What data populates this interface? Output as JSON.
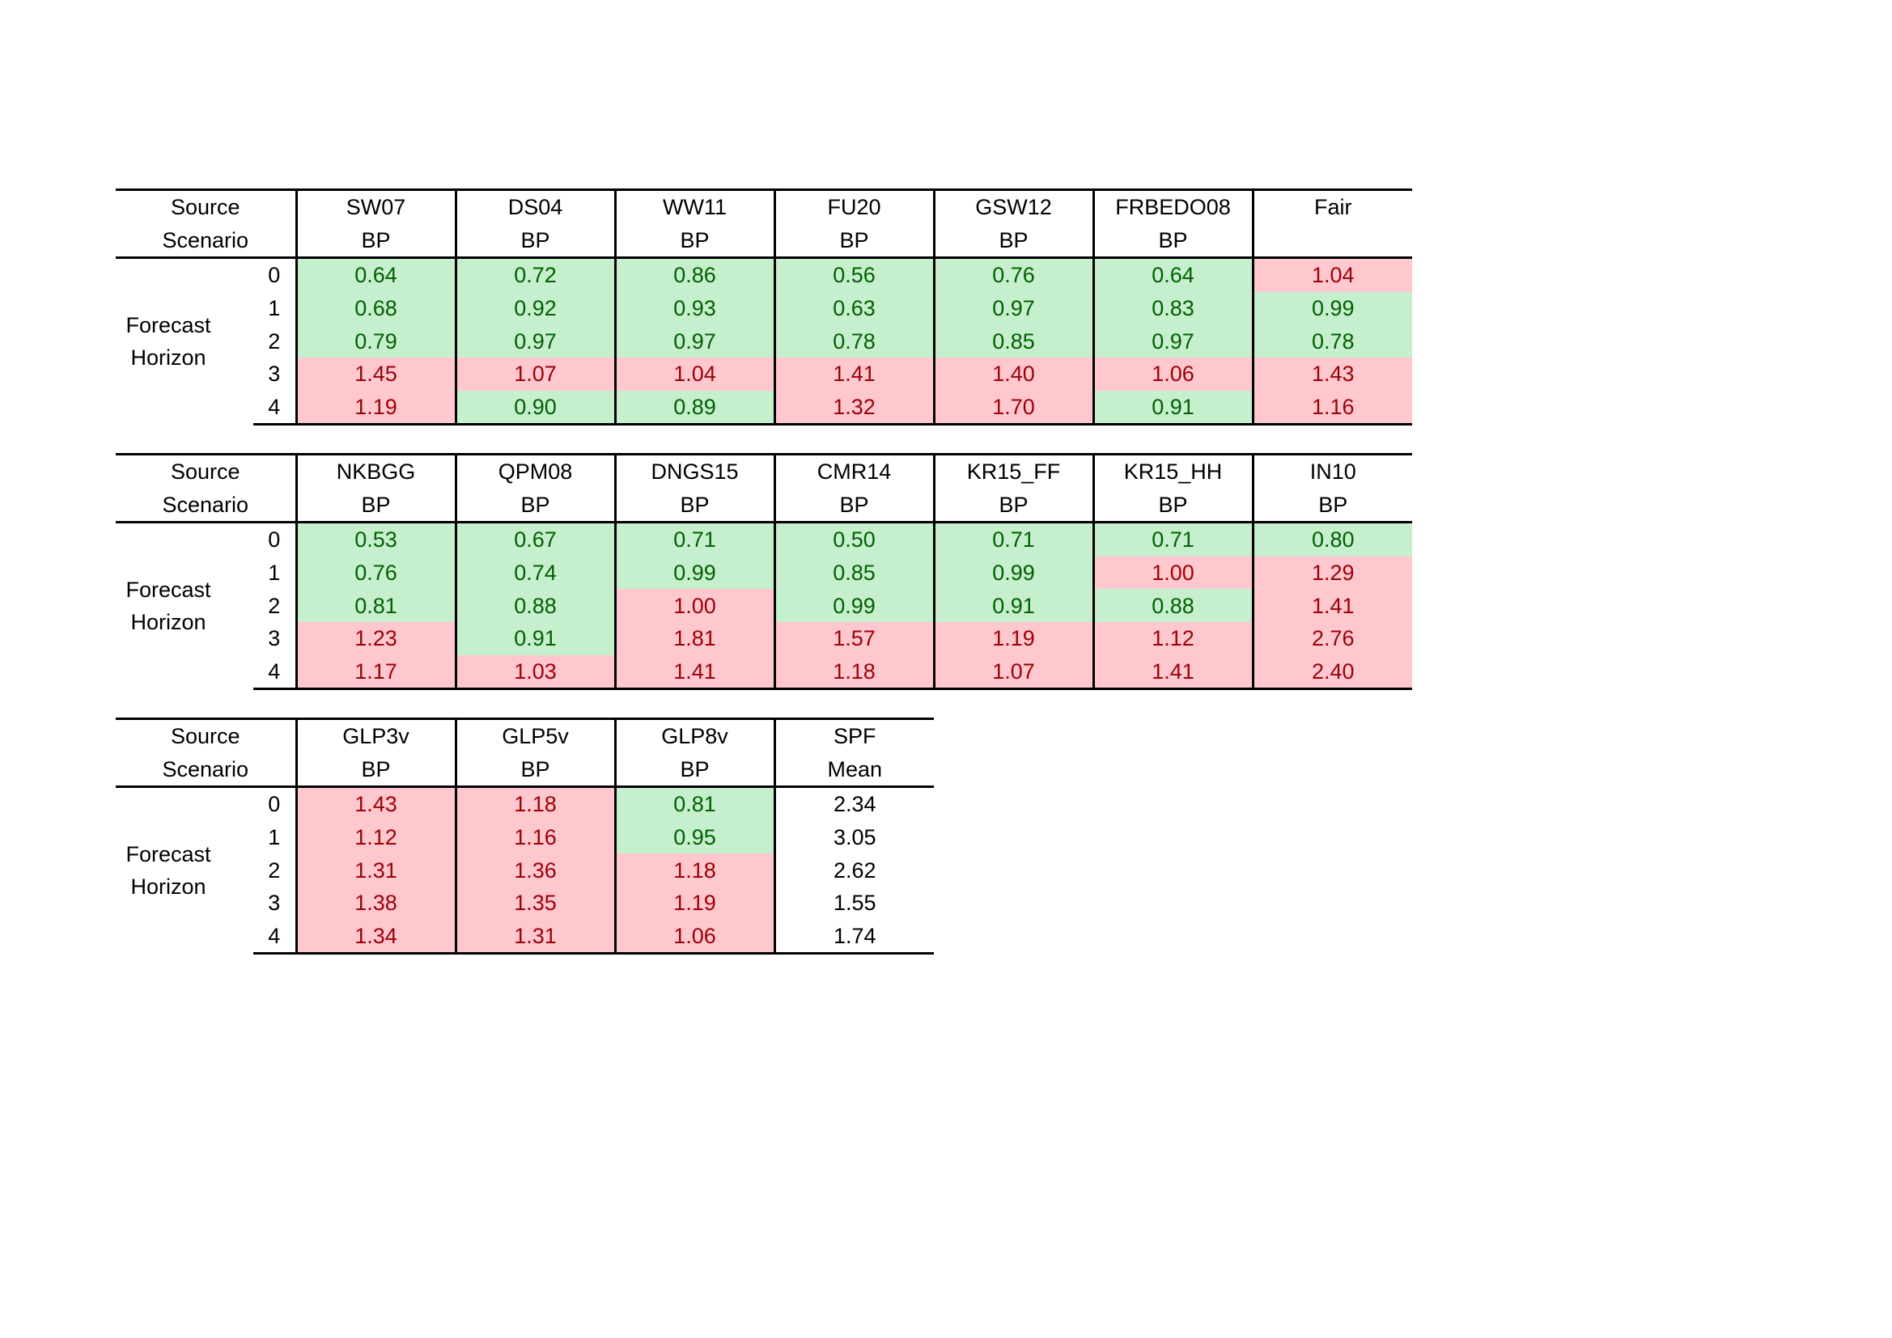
{
  "row_header": {
    "source": "Source",
    "scenario": "Scenario",
    "forecast": "Forecast",
    "horizon": "Horizon",
    "horizons": [
      "0",
      "1",
      "2",
      "3",
      "4"
    ]
  },
  "colors": {
    "green_fill": "#c6efce",
    "green_text": "#006100",
    "red_fill": "#ffc7ce",
    "red_text": "#9c0006"
  },
  "tables": [
    {
      "columns": [
        {
          "name": "SW07",
          "scenario": "BP",
          "values": [
            "0.64",
            "0.68",
            "0.79",
            "1.45",
            "1.19"
          ],
          "shade": [
            "g",
            "g",
            "g",
            "r",
            "r"
          ]
        },
        {
          "name": "DS04",
          "scenario": "BP",
          "values": [
            "0.72",
            "0.92",
            "0.97",
            "1.07",
            "0.90"
          ],
          "shade": [
            "g",
            "g",
            "g",
            "r",
            "g"
          ]
        },
        {
          "name": "WW11",
          "scenario": "BP",
          "values": [
            "0.86",
            "0.93",
            "0.97",
            "1.04",
            "0.89"
          ],
          "shade": [
            "g",
            "g",
            "g",
            "r",
            "g"
          ]
        },
        {
          "name": "FU20",
          "scenario": "BP",
          "values": [
            "0.56",
            "0.63",
            "0.78",
            "1.41",
            "1.32"
          ],
          "shade": [
            "g",
            "g",
            "g",
            "r",
            "r"
          ]
        },
        {
          "name": "GSW12",
          "scenario": "BP",
          "values": [
            "0.76",
            "0.97",
            "0.85",
            "1.40",
            "1.70"
          ],
          "shade": [
            "g",
            "g",
            "g",
            "r",
            "r"
          ]
        },
        {
          "name": "FRBEDO08",
          "scenario": "BP",
          "values": [
            "0.64",
            "0.83",
            "0.97",
            "1.06",
            "0.91"
          ],
          "shade": [
            "g",
            "g",
            "g",
            "r",
            "g"
          ]
        },
        {
          "name": "Fair",
          "scenario": "",
          "values": [
            "1.04",
            "0.99",
            "0.78",
            "1.43",
            "1.16"
          ],
          "shade": [
            "r",
            "g",
            "g",
            "r",
            "r"
          ]
        }
      ]
    },
    {
      "columns": [
        {
          "name": "NKBGG",
          "scenario": "BP",
          "values": [
            "0.53",
            "0.76",
            "0.81",
            "1.23",
            "1.17"
          ],
          "shade": [
            "g",
            "g",
            "g",
            "r",
            "r"
          ]
        },
        {
          "name": "QPM08",
          "scenario": "BP",
          "values": [
            "0.67",
            "0.74",
            "0.88",
            "0.91",
            "1.03"
          ],
          "shade": [
            "g",
            "g",
            "g",
            "g",
            "r"
          ]
        },
        {
          "name": "DNGS15",
          "scenario": "BP",
          "values": [
            "0.71",
            "0.99",
            "1.00",
            "1.81",
            "1.41"
          ],
          "shade": [
            "g",
            "g",
            "r",
            "r",
            "r"
          ]
        },
        {
          "name": "CMR14",
          "scenario": "BP",
          "values": [
            "0.50",
            "0.85",
            "0.99",
            "1.57",
            "1.18"
          ],
          "shade": [
            "g",
            "g",
            "g",
            "r",
            "r"
          ]
        },
        {
          "name": "KR15_FF",
          "scenario": "BP",
          "values": [
            "0.71",
            "0.99",
            "0.91",
            "1.19",
            "1.07"
          ],
          "shade": [
            "g",
            "g",
            "g",
            "r",
            "r"
          ]
        },
        {
          "name": "KR15_HH",
          "scenario": "BP",
          "values": [
            "0.71",
            "1.00",
            "0.88",
            "1.12",
            "1.41"
          ],
          "shade": [
            "g",
            "r",
            "g",
            "r",
            "r"
          ]
        },
        {
          "name": "IN10",
          "scenario": "BP",
          "values": [
            "0.80",
            "1.29",
            "1.41",
            "2.76",
            "2.40"
          ],
          "shade": [
            "g",
            "r",
            "r",
            "r",
            "r"
          ]
        }
      ]
    },
    {
      "columns": [
        {
          "name": "GLP3v",
          "scenario": "BP",
          "values": [
            "1.43",
            "1.12",
            "1.31",
            "1.38",
            "1.34"
          ],
          "shade": [
            "r",
            "r",
            "r",
            "r",
            "r"
          ]
        },
        {
          "name": "GLP5v",
          "scenario": "BP",
          "values": [
            "1.18",
            "1.16",
            "1.36",
            "1.35",
            "1.31"
          ],
          "shade": [
            "r",
            "r",
            "r",
            "r",
            "r"
          ]
        },
        {
          "name": "GLP8v",
          "scenario": "BP",
          "values": [
            "0.81",
            "0.95",
            "1.18",
            "1.19",
            "1.06"
          ],
          "shade": [
            "g",
            "g",
            "r",
            "r",
            "r"
          ]
        },
        {
          "name": "SPF",
          "scenario": "Mean",
          "values": [
            "2.34",
            "3.05",
            "2.62",
            "1.55",
            "1.74"
          ],
          "shade": [
            "n",
            "n",
            "n",
            "n",
            "n"
          ]
        }
      ]
    }
  ]
}
